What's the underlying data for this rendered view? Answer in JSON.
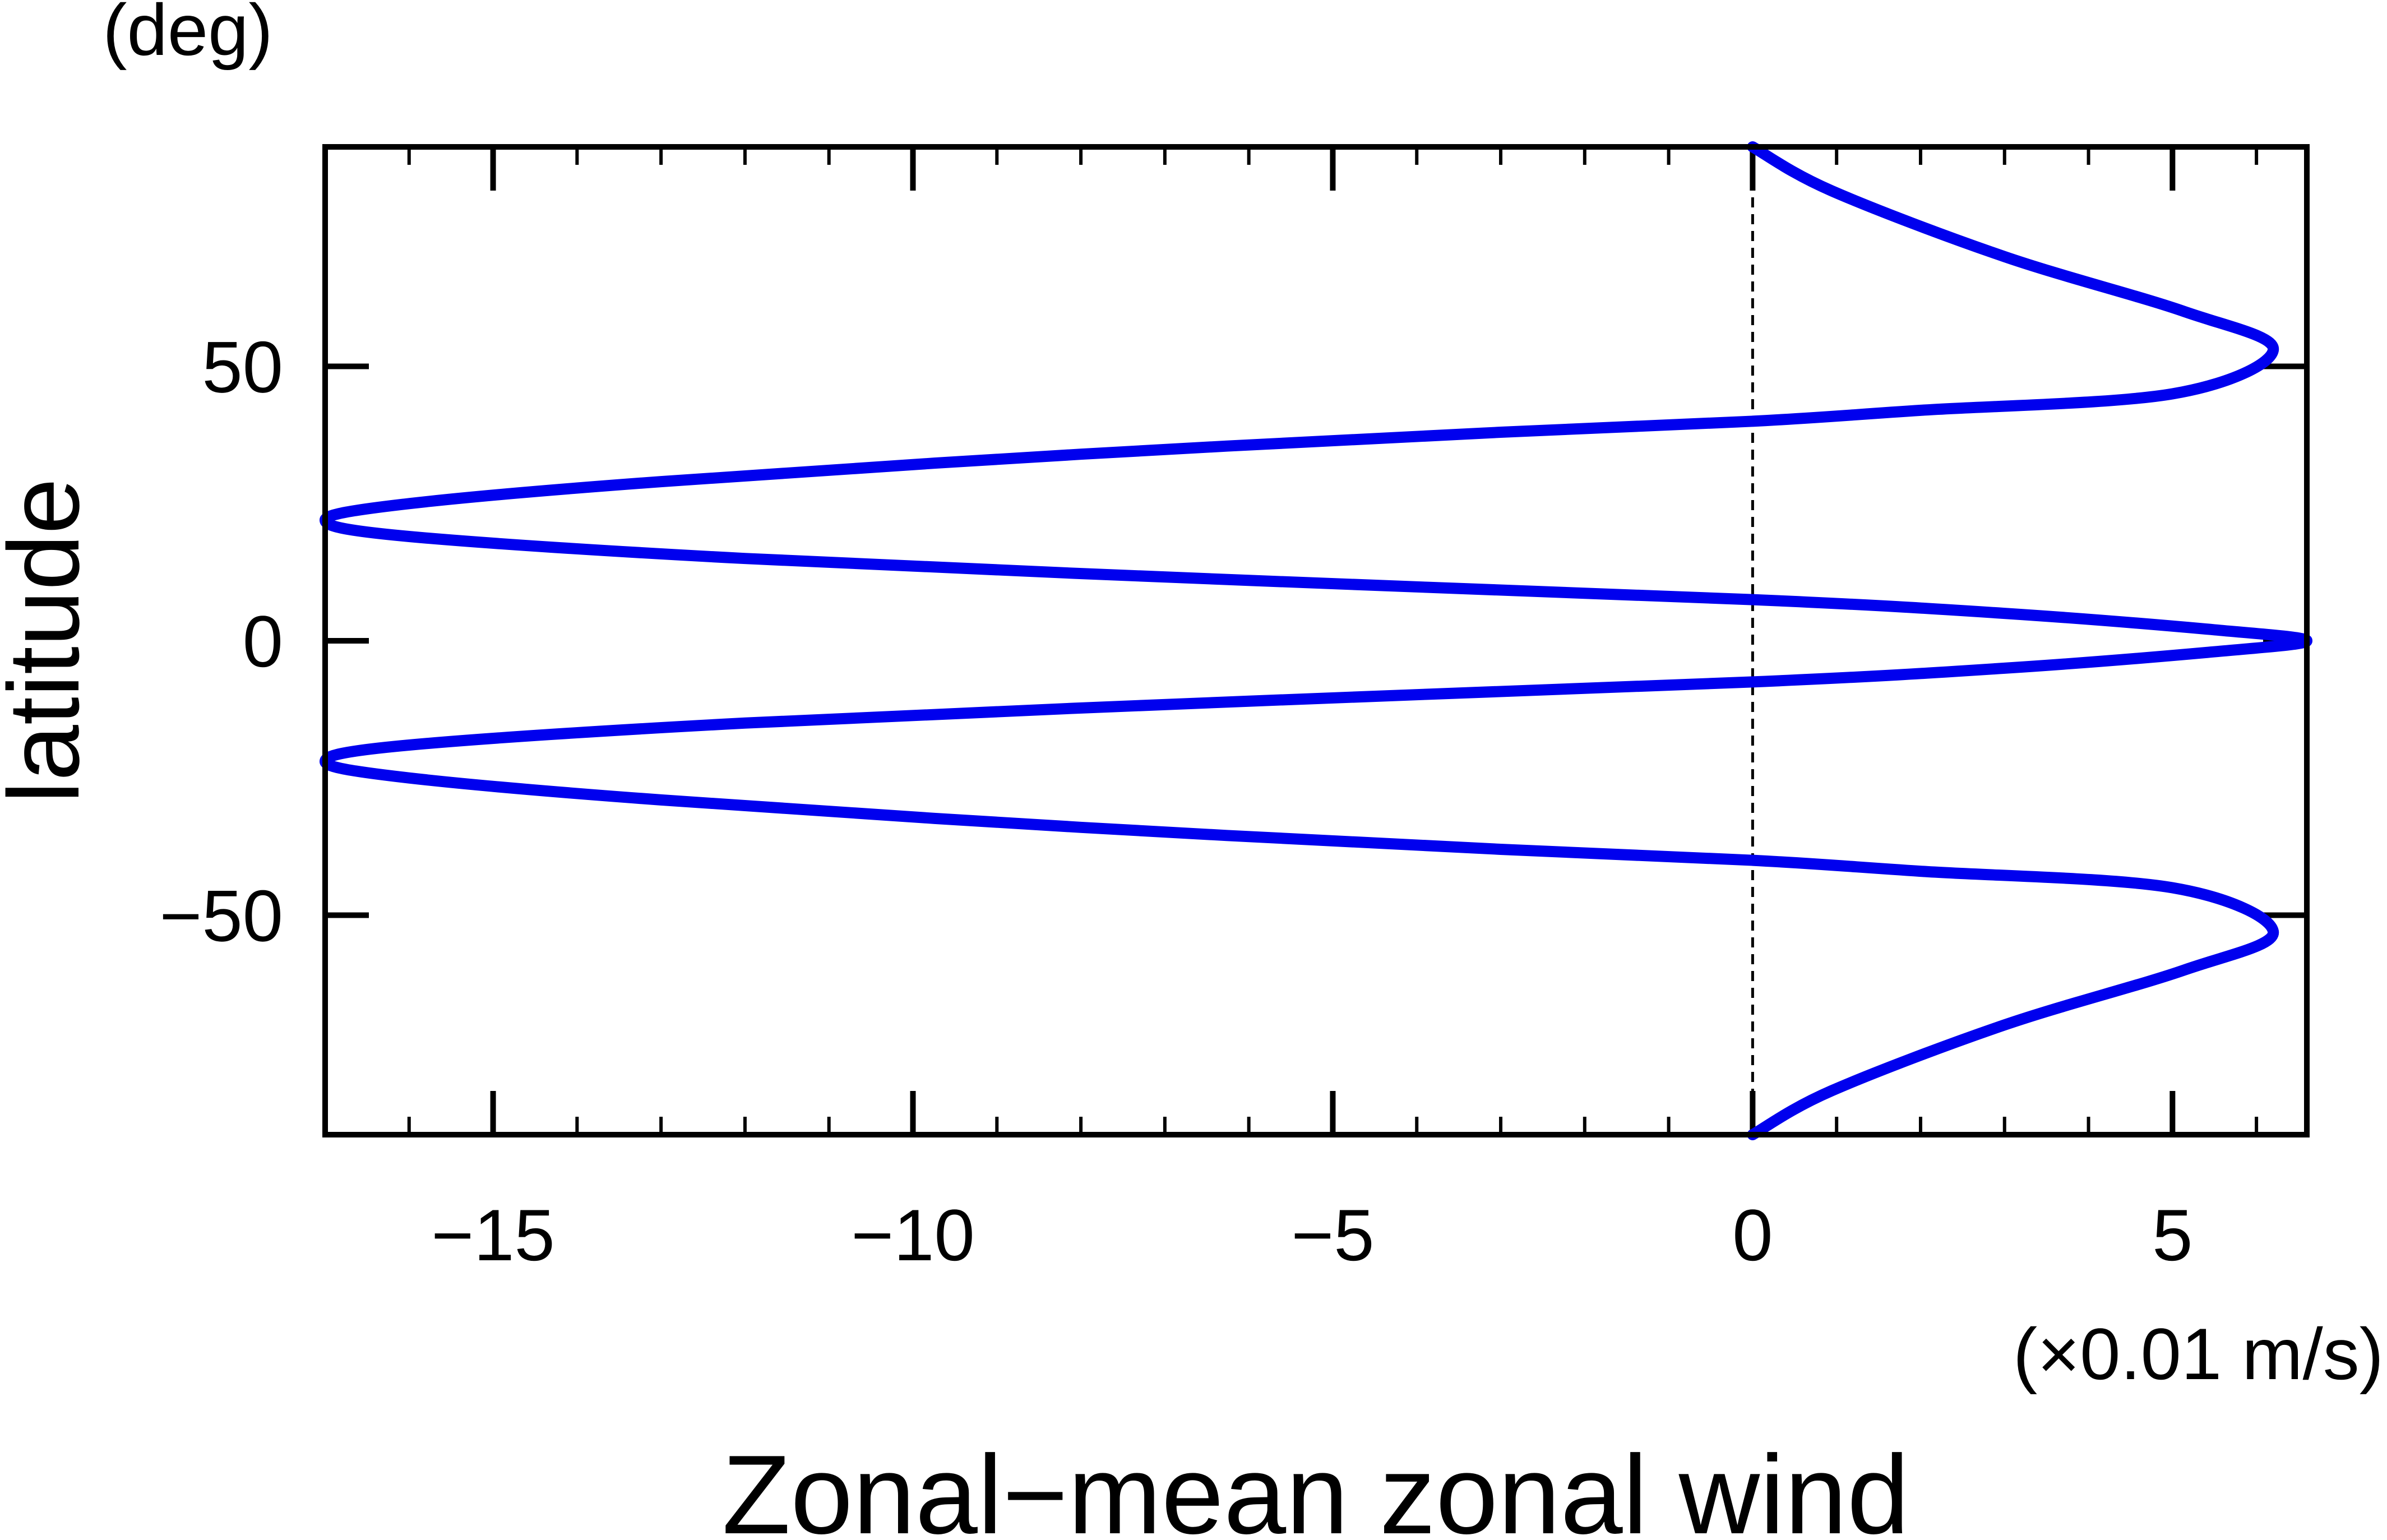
{
  "chart_data": {
    "type": "line",
    "title": "",
    "xlabel": "Zonal−mean zonal wind",
    "xunit": "(×0.01 m/s)",
    "ylabel": "latitude",
    "yunit": "(deg)",
    "xlim": [
      -17,
      6.6
    ],
    "ylim": [
      -90,
      90
    ],
    "xticks": [
      {
        "value": -15,
        "label": "−15"
      },
      {
        "value": -10,
        "label": "−10"
      },
      {
        "value": -5,
        "label": "−5"
      },
      {
        "value": 0,
        "label": "0"
      },
      {
        "value": 5,
        "label": "5"
      }
    ],
    "yticks": [
      {
        "value": 50,
        "label": "50"
      },
      {
        "value": 0,
        "label": "0"
      },
      {
        "value": -50,
        "label": "−50"
      }
    ],
    "x_minor_step": 1,
    "grid": false,
    "reference_line": {
      "x": 0,
      "style": "dashed",
      "color": "#000000"
    },
    "series": [
      {
        "color": "#0000ee",
        "x": [
          0.0,
          0.94,
          3.0,
          5.14,
          6.2,
          5.0,
          2.0,
          0.0,
          -3.0,
          -8.0,
          -13.0,
          -16.0,
          -17.0,
          -16.0,
          -12.0,
          -6.0,
          0.0,
          3.0,
          5.5,
          6.6,
          5.5,
          3.0,
          0.0,
          -6.0,
          -12.0,
          -16.0,
          -17.0,
          -16.0,
          -13.0,
          -8.0,
          -3.0,
          0.0,
          2.0,
          5.0,
          6.2,
          5.14,
          3.0,
          0.94,
          0.0
        ],
        "y": [
          90,
          82,
          70,
          60,
          53,
          45,
          42,
          40,
          38,
          34,
          29,
          25,
          22,
          19,
          15,
          11,
          7.5,
          5,
          2,
          0,
          -2,
          -5,
          -7.5,
          -11,
          -15,
          -19,
          -22,
          -25,
          -29,
          -34,
          -38,
          -40,
          -42,
          -45,
          -53,
          -60,
          -70,
          -82,
          -90
        ]
      }
    ]
  }
}
